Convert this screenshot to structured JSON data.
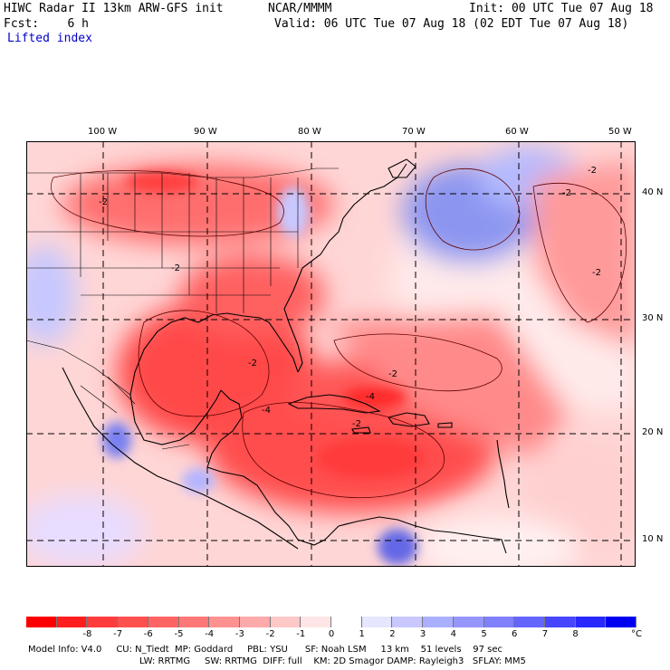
{
  "header": {
    "model_title": "HIWC Radar II 13km ARW-GFS init",
    "org": "NCAR/MMMM",
    "init": "Init: 00 UTC Tue 07 Aug 18",
    "fcst": "Fcst:    6 h",
    "valid": "Valid: 06 UTC Tue 07 Aug 18 (02 EDT Tue 07 Aug 18)",
    "field": "Lifted index"
  },
  "map": {
    "lon_labels": [
      "100 W",
      "90 W",
      "80 W",
      "70 W",
      "60 W",
      "50 W"
    ],
    "lat_labels": [
      "40 N",
      "30 N",
      "20 N",
      "10 N"
    ],
    "contour_labels": [
      "-2",
      "-2",
      "-2",
      "-2",
      "-2",
      "-2",
      "-2",
      "-2",
      "-4",
      "-4"
    ],
    "colors": {
      "strong_negative": "#ff2020",
      "negative": "#ff8080",
      "weak_negative": "#ffc8c8",
      "neutral": "#ffffff",
      "positive": "#aab0ff",
      "strong_positive": "#5a5ae6"
    }
  },
  "colorbar": {
    "ticks": [
      "-8",
      "-7",
      "-6",
      "-5",
      "-4",
      "-3",
      "-2",
      "-1",
      "0",
      "1",
      "2",
      "3",
      "4",
      "5",
      "6",
      "7",
      "8"
    ],
    "unit": "°C",
    "colors": [
      "#ff0000",
      "#ff1e1e",
      "#ff3c3c",
      "#ff5050",
      "#ff6464",
      "#ff7878",
      "#ff9191",
      "#ffaaaa",
      "#ffc8c8",
      "#ffe6e6",
      "#ffffff",
      "#e6e6ff",
      "#c8c8ff",
      "#aab0ff",
      "#9696ff",
      "#8080ff",
      "#6464ff",
      "#4646ff",
      "#2828ff",
      "#0000f0"
    ]
  },
  "footer": {
    "line1": "Model Info: V4.0     CU: N_Tiedt  MP: Goddard     PBL: YSU      SF: Noah LSM     13 km    51 levels    97 sec",
    "line2": "LW: RRTMG     SW: RRTMG  DIFF: full    KM: 2D Smagor DAMP: Rayleigh3   SFLAY: MM5"
  }
}
